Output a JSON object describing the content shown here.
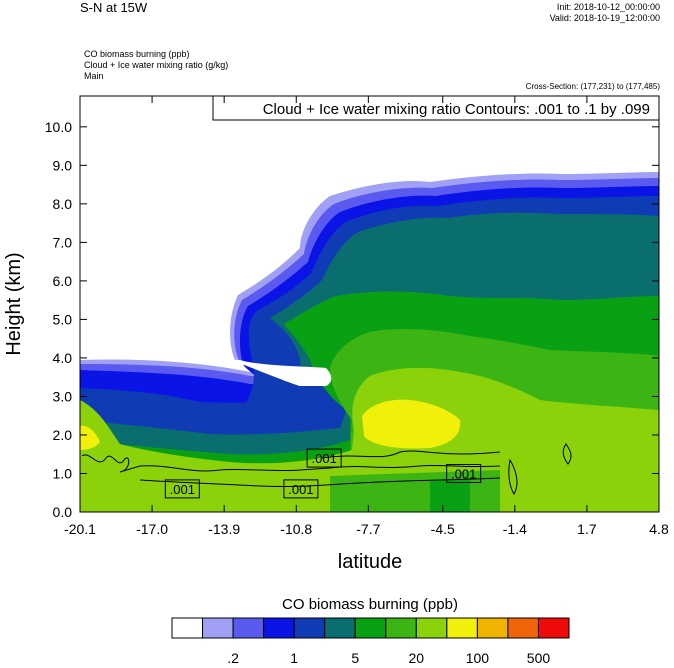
{
  "header": {
    "title": "S-N at 15W",
    "init": "Init: 2018-10-12_00:00:00",
    "valid": "Valid: 2018-10-19_12:00:00",
    "field1": "CO biomass burning   (ppb)",
    "field2": "Cloud + Ice water mixing ratio   (g/kg)",
    "field3": "Main",
    "cross_section": "Cross-Section: (177,231) to (177,485)"
  },
  "chart_data": {
    "type": "heatmap",
    "title": "Cloud + Ice water mixing ratio Contours: .001 to .1 by .099",
    "xlabel": "latitude",
    "ylabel": "Height (km)",
    "xlim": [
      -20.1,
      4.8
    ],
    "ylim": [
      0.0,
      10.8
    ],
    "x_ticks": [
      "-20.1",
      "-17.0",
      "-13.9",
      "-10.8",
      "-7.7",
      "-4.5",
      "-1.4",
      "1.7",
      "4.8"
    ],
    "y_ticks": [
      "0.0",
      "1.0",
      "2.0",
      "3.0",
      "4.0",
      "5.0",
      "6.0",
      "7.0",
      "8.0",
      "9.0",
      "10.0"
    ],
    "fill_field": "CO biomass burning (ppb)",
    "contour_field": "Cloud + Ice water mixing ratio (g/kg)",
    "contour_levels": [
      0.001,
      0.1
    ],
    "contour_labels": [
      ".001",
      ".001",
      ".001",
      ".001"
    ],
    "colorbar": {
      "title": "CO biomass burning  (ppb)",
      "colors": [
        "#ffffff",
        "#a0a0f5",
        "#5a5af0",
        "#0a14e6",
        "#0f3cb4",
        "#0a6e6e",
        "#0aa014",
        "#3cb414",
        "#8cd20a",
        "#f0f00a",
        "#f0b400",
        "#f0640a",
        "#f00a0a"
      ],
      "tick_labels": [
        ".2",
        "1",
        "5",
        "20",
        "100",
        "500"
      ]
    },
    "regions_by_height_km": [
      {
        "level": "white",
        "color": "#ffffff",
        "approx_range": "above ~8.5 km and inside the dry intrusion between -17 and -11 latitude (3.3–7.8 km)"
      },
      {
        "level": "blue",
        "color": "#0a14e6",
        "approx_range": "3.0–4.3 km south of -17; cloud-top edge near 8.5 km"
      },
      {
        "level": "teal",
        "color": "#0a6e6e",
        "approx_range": "5.5–7.8 km from -11 to 4.8"
      },
      {
        "level": "green",
        "color": "#3cb414",
        "approx_range": "0.0–5.5 km from -11 to -1"
      },
      {
        "level": "yellow",
        "color": "#f0f00a",
        "approx_range": "1.7–2.9 km near -6.5"
      }
    ]
  }
}
